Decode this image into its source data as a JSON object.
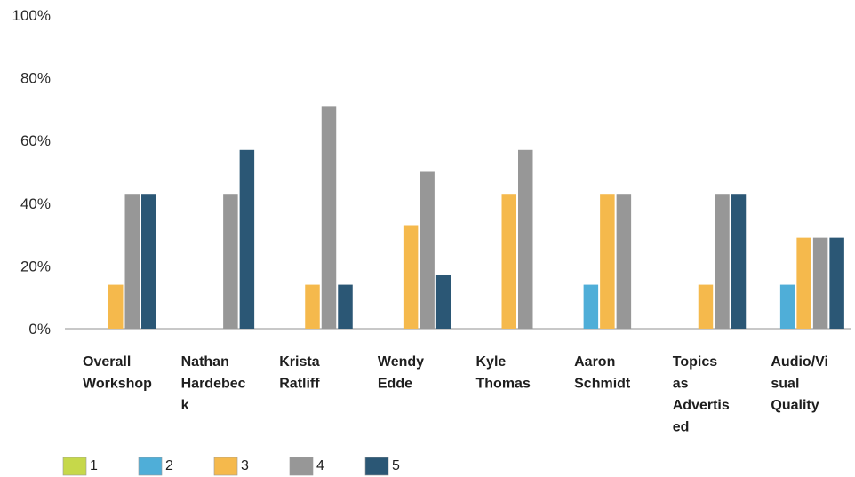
{
  "chart_data": {
    "type": "bar",
    "title": "",
    "xlabel": "",
    "ylabel": "",
    "ylim": [
      0,
      100
    ],
    "y_ticks": [
      "0%",
      "20%",
      "40%",
      "60%",
      "80%",
      "100%"
    ],
    "y_tick_values": [
      0,
      20,
      40,
      60,
      80,
      100
    ],
    "categories": [
      [
        "Overall",
        "Workshop"
      ],
      [
        "Nathan",
        "Hardebec",
        "k"
      ],
      [
        "Krista",
        "Ratliff"
      ],
      [
        "Wendy",
        "Edde"
      ],
      [
        "Kyle",
        "Thomas"
      ],
      [
        "Aaron",
        "Schmidt"
      ],
      [
        "Topics",
        "as",
        "Advertis",
        "ed"
      ],
      [
        "Audio/Vi",
        "sual",
        "Quality"
      ]
    ],
    "series": [
      {
        "name": "1",
        "color": "#c6d84a",
        "values": [
          0,
          0,
          0,
          0,
          0,
          0,
          0,
          0
        ]
      },
      {
        "name": "2",
        "color": "#4faed8",
        "values": [
          0,
          0,
          0,
          0,
          0,
          14,
          0,
          14
        ]
      },
      {
        "name": "3",
        "color": "#f5b94c",
        "values": [
          14,
          0,
          14,
          33,
          43,
          43,
          14,
          29
        ]
      },
      {
        "name": "4",
        "color": "#979797",
        "values": [
          43,
          43,
          71,
          50,
          57,
          43,
          43,
          29
        ]
      },
      {
        "name": "5",
        "color": "#2b5775",
        "values": [
          43,
          57,
          14,
          17,
          0,
          0,
          43,
          29
        ]
      }
    ],
    "grid": false,
    "legend_position": "bottom-left"
  }
}
